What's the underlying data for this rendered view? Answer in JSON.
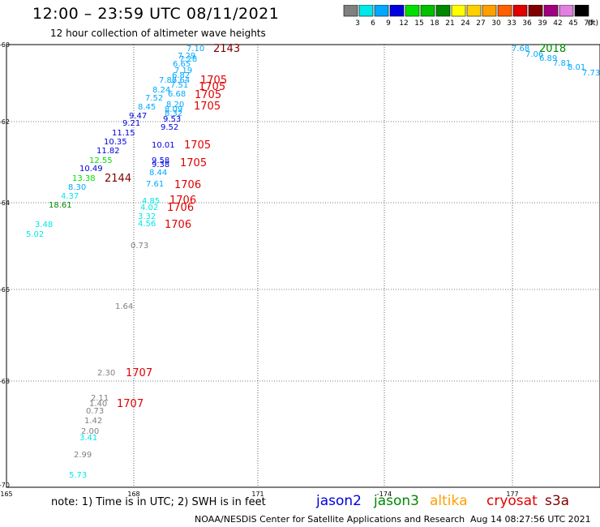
{
  "header": {
    "title": "12:00 – 23:59 UTC 08/11/2021",
    "subtitle": "12 hour collection of altimeter wave heights"
  },
  "colorbar": {
    "labels": [
      "3",
      "6",
      "9",
      "12",
      "15",
      "18",
      "21",
      "24",
      "27",
      "30",
      "33",
      "36",
      "39",
      "42",
      "45",
      "70"
    ],
    "unit": "(ft)",
    "colors": [
      "#808080",
      "#00e8e8",
      "#00a8ff",
      "#0000e0",
      "#00e000",
      "#00c000",
      "#008800",
      "#ffff00",
      "#ffd000",
      "#ffa000",
      "#ff6000",
      "#e00000",
      "#800000",
      "#a00080",
      "#e080e0",
      "#000000"
    ]
  },
  "map": {
    "lon_ticks": [
      "165",
      "168",
      "171",
      "-174",
      "177"
    ],
    "lat_ticks": [
      "-60",
      "-62",
      "-64",
      "-66",
      "-68",
      "-70"
    ]
  },
  "observations": [
    {
      "v": "7.10",
      "c": "#00a8ff"
    },
    {
      "v": "7.29",
      "c": "#00a8ff"
    },
    {
      "v": "7.28",
      "c": "#00a8ff"
    },
    {
      "v": "6.65",
      "c": "#00a8ff"
    },
    {
      "v": "7.19",
      "c": "#00a8ff"
    },
    {
      "v": "6.82",
      "c": "#00a8ff"
    },
    {
      "v": "7.64",
      "c": "#00a8ff"
    },
    {
      "v": "7.51",
      "c": "#00a8ff"
    },
    {
      "v": "7.86",
      "c": "#00a8ff"
    },
    {
      "v": "8.24",
      "c": "#00a8ff"
    },
    {
      "v": "6.68",
      "c": "#00a8ff"
    },
    {
      "v": "7.52",
      "c": "#00a8ff"
    },
    {
      "v": "8.20",
      "c": "#00a8ff"
    },
    {
      "v": "8.45",
      "c": "#00a8ff"
    },
    {
      "v": "8.09",
      "c": "#00a8ff"
    },
    {
      "v": "8.32",
      "c": "#00a8ff"
    },
    {
      "v": "9.47",
      "c": "#0000e0"
    },
    {
      "v": "9.53",
      "c": "#0000e0"
    },
    {
      "v": "9.21",
      "c": "#0000e0"
    },
    {
      "v": "9.52",
      "c": "#0000e0"
    },
    {
      "v": "11.15",
      "c": "#0000e0"
    },
    {
      "v": "10.35",
      "c": "#0000e0"
    },
    {
      "v": "10.01",
      "c": "#0000e0"
    },
    {
      "v": "11.82",
      "c": "#0000e0"
    },
    {
      "v": "12.55",
      "c": "#00e000"
    },
    {
      "v": "9.58",
      "c": "#0000e0"
    },
    {
      "v": "9.38",
      "c": "#0000e0"
    },
    {
      "v": "10.49",
      "c": "#0000e0"
    },
    {
      "v": "8.44",
      "c": "#00a8ff"
    },
    {
      "v": "13.38",
      "c": "#00e000"
    },
    {
      "v": "8.30",
      "c": "#00a8ff"
    },
    {
      "v": "7.61",
      "c": "#00a8ff"
    },
    {
      "v": "4.37",
      "c": "#00e8e8"
    },
    {
      "v": "4.85",
      "c": "#00e8e8"
    },
    {
      "v": "4.02",
      "c": "#00e8e8"
    },
    {
      "v": "18.61",
      "c": "#008800"
    },
    {
      "v": "3.32",
      "c": "#00e8e8"
    },
    {
      "v": "3.48",
      "c": "#00e8e8"
    },
    {
      "v": "4.56",
      "c": "#00e8e8"
    },
    {
      "v": "5.02",
      "c": "#00e8e8"
    },
    {
      "v": "0.73",
      "c": "#808080"
    },
    {
      "v": "1.64",
      "c": "#808080"
    },
    {
      "v": "2.30",
      "c": "#808080"
    },
    {
      "v": "2.11",
      "c": "#808080"
    },
    {
      "v": "1.40",
      "c": "#808080"
    },
    {
      "v": "0.73",
      "c": "#808080"
    },
    {
      "v": "1.42",
      "c": "#808080"
    },
    {
      "v": "2.00",
      "c": "#808080"
    },
    {
      "v": "3.41",
      "c": "#00e8e8"
    },
    {
      "v": "2.99",
      "c": "#808080"
    },
    {
      "v": "5.73",
      "c": "#00e8e8"
    },
    {
      "v": "7.68",
      "c": "#00a8ff"
    },
    {
      "v": "7.06",
      "c": "#00a8ff"
    },
    {
      "v": "6.89",
      "c": "#00a8ff"
    },
    {
      "v": "7.81",
      "c": "#00a8ff"
    },
    {
      "v": "8.01",
      "c": "#00a8ff"
    },
    {
      "v": "7.73",
      "c": "#00a8ff"
    }
  ],
  "time_labels": [
    {
      "v": "2143",
      "c": "#800000"
    },
    {
      "v": "1705",
      "c": "#e00000"
    },
    {
      "v": "1705",
      "c": "#e00000"
    },
    {
      "v": "1705",
      "c": "#e00000"
    },
    {
      "v": "1705",
      "c": "#e00000"
    },
    {
      "v": "1705",
      "c": "#e00000"
    },
    {
      "v": "1705",
      "c": "#e00000"
    },
    {
      "v": "2144",
      "c": "#800000"
    },
    {
      "v": "1706",
      "c": "#e00000"
    },
    {
      "v": "1706",
      "c": "#e00000"
    },
    {
      "v": "1706",
      "c": "#e00000"
    },
    {
      "v": "1706",
      "c": "#e00000"
    },
    {
      "v": "1707",
      "c": "#e00000"
    },
    {
      "v": "1707",
      "c": "#e00000"
    },
    {
      "v": "2018",
      "c": "#008800"
    }
  ],
  "footer": {
    "note": "note: 1) Time is in UTC; 2) SWH is in feet",
    "satellites": [
      {
        "name": "jason2",
        "color": "#0000e0"
      },
      {
        "name": "jason3",
        "color": "#008800"
      },
      {
        "name": "altika",
        "color": "#ffa000"
      },
      {
        "name": "cryosat",
        "color": "#e00000"
      },
      {
        "name": "s3a",
        "color": "#800000"
      }
    ],
    "credit": "NOAA/NESDIS Center for Satellite Applications and Research",
    "timestamp": "Aug 14 08:27:56 UTC 2021"
  }
}
